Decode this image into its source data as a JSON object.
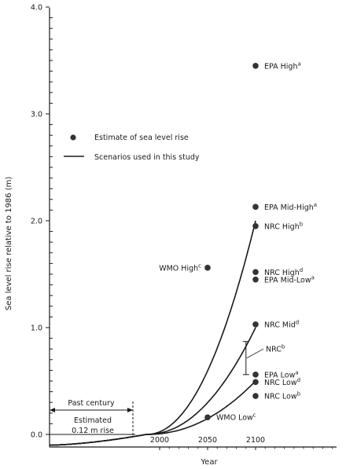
{
  "chart_data": {
    "type": "scatter",
    "title": "",
    "xlabel": "Year",
    "ylabel": "Sea level rise relative to 1986 (m)",
    "ylim": [
      -0.1,
      4.0
    ],
    "xlim": [
      1886,
      2200
    ],
    "y_ticks": [
      "0.0",
      "1.0",
      "2.0",
      "3.0",
      "4.0"
    ],
    "x_ticks": [
      {
        "value": 2000,
        "label": "2000"
      },
      {
        "value": 2050,
        "label": "2050"
      },
      {
        "value": 2100,
        "label": "2100"
      }
    ],
    "grid": false,
    "legend": {
      "position": "top-left",
      "items": [
        {
          "symbol": "dot",
          "label": "Estimate of sea level rise"
        },
        {
          "symbol": "line",
          "label": "Scenarios used in this study"
        }
      ]
    },
    "points": [
      {
        "name": "EPA High",
        "sup": "a",
        "x": 2100,
        "y": 3.45
      },
      {
        "name": "EPA Mid-High",
        "sup": "a",
        "x": 2100,
        "y": 2.13
      },
      {
        "name": "NRC High",
        "sup": "b",
        "x": 2100,
        "y": 1.95
      },
      {
        "name": "NRC High",
        "sup": "d",
        "x": 2100,
        "y": 1.52
      },
      {
        "name": "EPA Mid-Low",
        "sup": "a",
        "x": 2100,
        "y": 1.45
      },
      {
        "name": "NRC Mid",
        "sup": "d",
        "x": 2100,
        "y": 1.03
      },
      {
        "name": "EPA Low",
        "sup": "a",
        "x": 2100,
        "y": 0.56
      },
      {
        "name": "NRC Low",
        "sup": "d",
        "x": 2100,
        "y": 0.49
      },
      {
        "name": "NRC Low",
        "sup": "b",
        "x": 2100,
        "y": 0.36
      },
      {
        "name": "WMO High",
        "sup": "c",
        "x": 2050,
        "y": 1.56
      },
      {
        "name": "WMO Low",
        "sup": "c",
        "x": 2050,
        "y": 0.16
      }
    ],
    "range_bar": {
      "name": "NRC",
      "sup": "b",
      "x": 2090,
      "y_low": 0.56,
      "y_high": 0.87
    },
    "scenario_curves": [
      {
        "y_at_2100": 2.0
      },
      {
        "y_at_2100": 1.0
      },
      {
        "y_at_2100": 0.5
      }
    ],
    "past_century": {
      "label": "Past century",
      "note_line1": "Estimated",
      "note_line2": "0.12 m rise",
      "x_start": 1886,
      "x_end": 1986
    }
  }
}
